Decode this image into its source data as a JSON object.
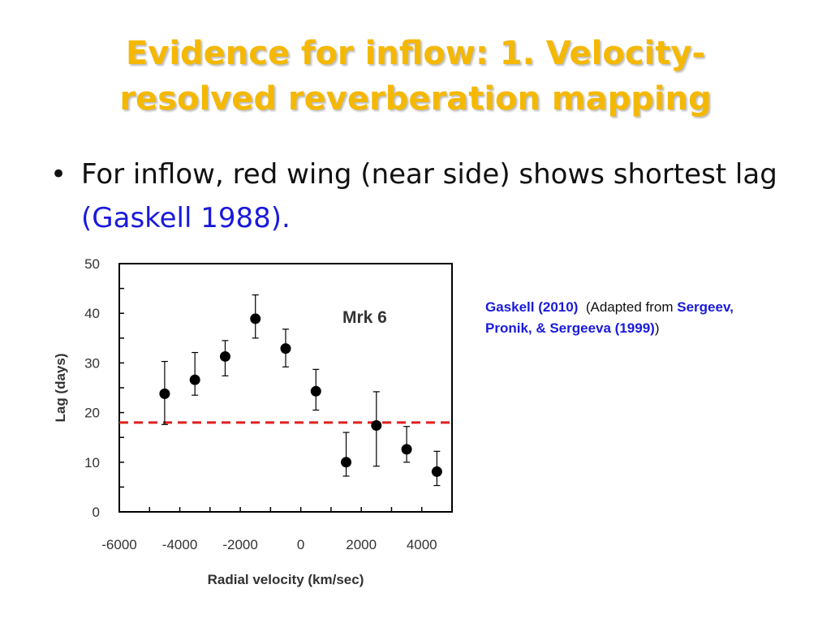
{
  "slide": {
    "title": "Evidence for inflow:  1. Velocity-resolved reverberation mapping",
    "bullet_text": "For inflow, red wing (near side) shows shortest lag ",
    "bullet_citation": "(Gaskell 1988).",
    "bullet_symbol": "•"
  },
  "reference": {
    "primary": "Gaskell (2010)",
    "note_open": "(Adapted from ",
    "source": "Sergeev, Pronik, & Sergeeva (1999)",
    "note_close": ")"
  },
  "chart_data": {
    "type": "scatter",
    "title": "",
    "annotation": "Mrk 6",
    "xlabel": "Radial velocity (km/sec)",
    "ylabel": "Lag (days)",
    "xlim": [
      -6000,
      5000
    ],
    "ylim": [
      0,
      50
    ],
    "xticks": [
      -6000,
      -4000,
      -2000,
      0,
      2000,
      4000
    ],
    "yticks": [
      0,
      10,
      20,
      30,
      40,
      50
    ],
    "grid": false,
    "legend": "none",
    "points": [
      {
        "x": -4500,
        "y": 23.8,
        "err_low": 6.2,
        "err_high": 6.5
      },
      {
        "x": -3500,
        "y": 26.6,
        "err_low": 3.1,
        "err_high": 5.5
      },
      {
        "x": -2500,
        "y": 31.3,
        "err_low": 3.9,
        "err_high": 3.2
      },
      {
        "x": -1500,
        "y": 38.9,
        "err_low": 3.9,
        "err_high": 4.8
      },
      {
        "x": -500,
        "y": 32.9,
        "err_low": 3.7,
        "err_high": 3.9
      },
      {
        "x": 500,
        "y": 24.3,
        "err_low": 3.8,
        "err_high": 4.4
      },
      {
        "x": 1500,
        "y": 10.0,
        "err_low": 2.8,
        "err_high": 6.0
      },
      {
        "x": 2500,
        "y": 17.4,
        "err_low": 8.2,
        "err_high": 6.8
      },
      {
        "x": 3500,
        "y": 12.6,
        "err_low": 2.6,
        "err_high": 4.6
      },
      {
        "x": 4500,
        "y": 8.1,
        "err_low": 2.8,
        "err_high": 4.1
      }
    ],
    "reference_line": {
      "y": 18,
      "color": "#e0201f",
      "style": "dashed"
    },
    "colors": {
      "marker": "#000000",
      "axis": "#000000",
      "text": "#333333"
    }
  }
}
